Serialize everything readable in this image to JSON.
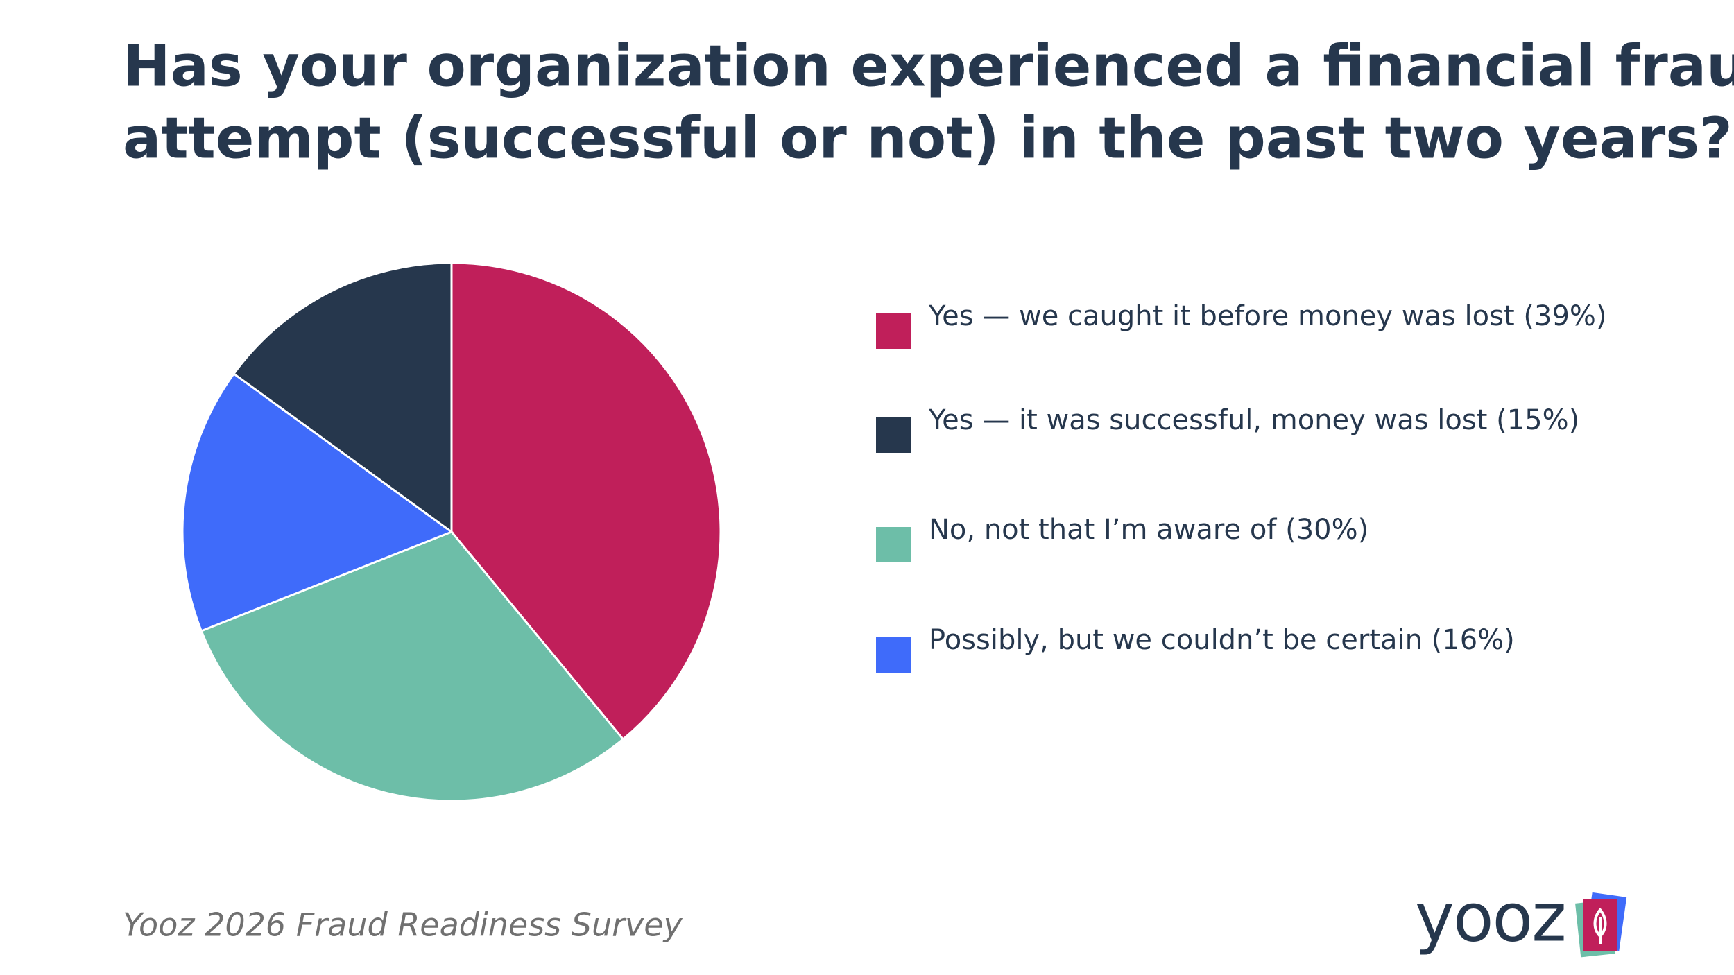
{
  "chart_data": {
    "type": "pie",
    "title": "Has your organization experienced a financial fraud attempt (successful or not) in the past two years?",
    "title_lines": [
      "Has your organization experienced a financial fraud",
      "attempt (successful or not) in the past two years?"
    ],
    "categories": [
      "Yes — we caught it before money was lost (39%)",
      "Yes — it was successful, money was lost (15%)",
      "No, not that I’m aware of (30%)",
      "Possibly, but we couldn’t be certain (16%)"
    ],
    "values": [
      39,
      15,
      30,
      16
    ],
    "colors": [
      "#c01f5a",
      "#26374d",
      "#6dbea8",
      "#3f6bfa"
    ],
    "legend": "right",
    "source": "Yooz 2026 Fraud Readiness Survey",
    "logo": "yooz"
  }
}
